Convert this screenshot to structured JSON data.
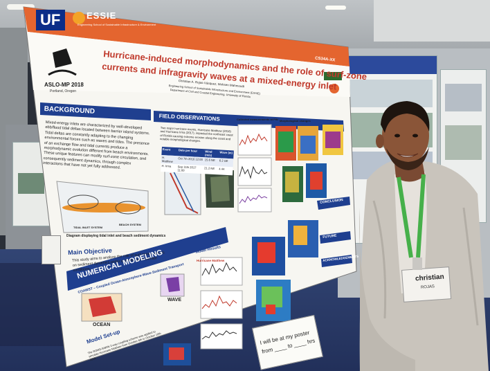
{
  "poster": {
    "logo_uf": "UF",
    "logo_essie": "ESSIE",
    "logo_essie_sub": "Engineering School of Sustainable Infrastructure & Environment",
    "conference": "ASLO-MP 2018",
    "conference_place": "Portland, Oregon",
    "code": "CS34A-XX",
    "title_line1": "Hurricane-induced morphodynamics and the role of surf-zone",
    "title_line2": "currents and infragravity waves at a mixed-energy inlet",
    "authors": "Christian A. Rojas-Vásquez, Mohsen Mahmoudi",
    "affiliation1": "Engineering School of Sustainable Infrastructure and Environment (ESSIE)",
    "affiliation2": "Department of Civil and Coastal Engineering, University of Florida",
    "background_header": "BACKGROUND",
    "background_text": "Mixed-energy inlets are characterized by well-developed ebb/flood tidal deltas located between barrier island systems. Tidal deltas are constantly adapting to the changing environmental forces such as waves and tides. The presence of an exchange flow and tidal currents produce a morphodynamic evolution different from beach environments. These unique features can modify surf-zone circulation, and consequently sediment dynamics, through complex interactions that have not yet fully addressed.",
    "diagram_caption": "Diagram displaying tidal inlet and beach sediment dynamics",
    "tidal_inlet_label": "TIDAL INLET SYSTEM",
    "beach_label": "BEACH SYSTEM",
    "main_objective_header": "Main Objective",
    "main_objective_text": "This study aims to analyze the role of surf-zone currents on sediment dynamics under extreme wave climate conditions.",
    "field_obs_header": "FIELD OBSERVATIONS",
    "field_obs_text": "Two major hurricane events, Hurricane Matthew (2016) and Hurricane Irma (2017), impacted the northeast coast of Florida causing extreme erosion along the coast and notable morphological changes.",
    "table_headers": [
      "Event",
      "Date per hour",
      "Wind (m/s)",
      "Wave (m)"
    ],
    "table_rows": [
      [
        "H. Matthew",
        "Oct 7th 2016 12:00",
        "15.6 NE",
        "6.2 SE"
      ],
      [
        "H. Irma",
        "Sep 11th 2017 11:00",
        "21.2 NE",
        "4.44"
      ]
    ],
    "collected_measurements": "Collected measurements at PIN",
    "morphological_changes": "Morphological changes",
    "numerical_header": "NUMERICAL MODELING",
    "coawst": "COAWST – Coupled Ocean-Atmosphere-Wave-Sediment Transport",
    "ocean_label": "OCEAN",
    "wave_label": "WAVE",
    "model_setup_header": "Model Set-up",
    "model_setup_text": "The ROMS-SWAN 2-way coupling scheme was applied to simulate Hurricane Matthew from October 6th to October 10th 2016",
    "model_results": "Model Results",
    "conclusion_header": "CONCLUSION",
    "future_header": "FUTURE",
    "ack_header": "ACKNOWLEDGEMENTS",
    "hurricane_label": "Hurricane Matthew"
  },
  "note_card": {
    "line1": "I will be at my poster",
    "line2": "from ____ to ____ hrs"
  },
  "badge": {
    "first_name": "christian",
    "last_name": "ROJAS"
  },
  "colors": {
    "poster_orange": "#e4652f",
    "poster_navy": "#1f3f8f",
    "title_red": "#c0392b",
    "lanyard_green": "#46b04a",
    "carpet_blue": "#2c3d66"
  }
}
